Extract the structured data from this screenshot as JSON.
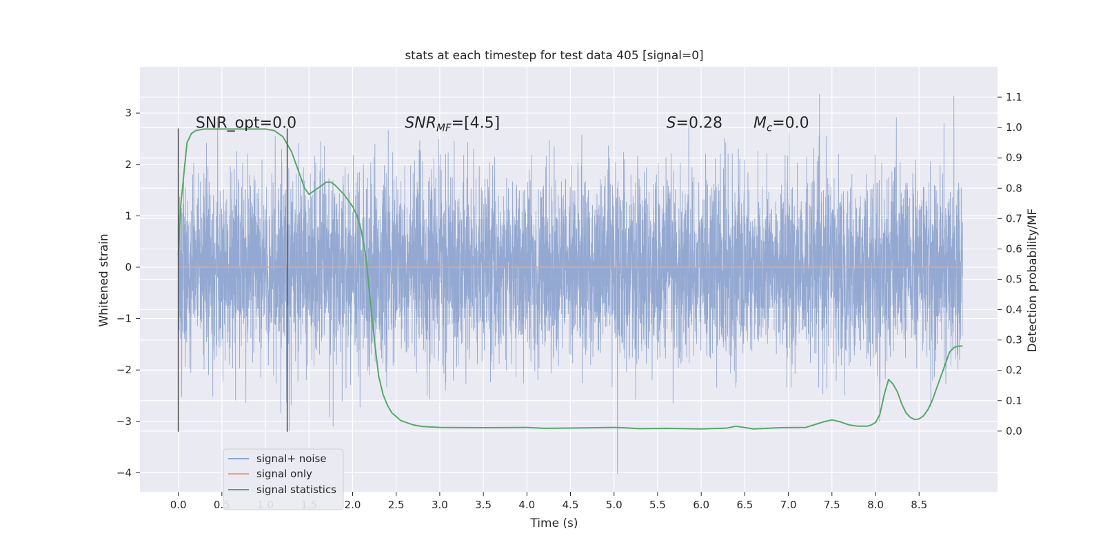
{
  "chart_data": {
    "type": "line",
    "title": "stats at each timestep for test data 405 [signal=0]",
    "xlabel": "Time (s)",
    "ylabel": "Whitened strain",
    "y2label": "Detection probability/MF",
    "xlim": [
      -0.44,
      9.4
    ],
    "ylim": [
      -4.37,
      3.9
    ],
    "y2lim": [
      -0.2,
      1.2
    ],
    "x_ticks": [
      0.0,
      0.5,
      1.0,
      1.5,
      2.0,
      2.5,
      3.0,
      3.5,
      4.0,
      4.5,
      5.0,
      5.5,
      6.0,
      6.5,
      7.0,
      7.5,
      8.0,
      8.5
    ],
    "y_ticks": [
      3,
      2,
      1,
      0,
      -1,
      -2,
      -3,
      -4
    ],
    "y2_ticks": [
      0.0,
      0.1,
      0.2,
      0.3,
      0.4,
      0.5,
      0.6,
      0.7,
      0.8,
      0.9,
      1.0,
      1.1
    ],
    "grid": true,
    "legend_position": "lower-left",
    "annotations": [
      {
        "text": "SNR_opt=0.0",
        "x": 0.2,
        "y": 2.82
      },
      {
        "text": "SNR_MF=[4.5]",
        "x": 2.6,
        "y": 2.82
      },
      {
        "text": "S=0.28",
        "x": 5.6,
        "y": 2.82
      },
      {
        "text": "M_c=0.0",
        "x": 6.6,
        "y": 2.82
      }
    ],
    "vlines": [
      {
        "x": 0.0,
        "ymin": -3.2,
        "ymax": 2.7
      },
      {
        "x": 1.25,
        "ymin": -3.2,
        "ymax": 2.7
      }
    ],
    "series": [
      {
        "name": "signal+ noise",
        "axis": "left",
        "color": "#8fa5cf",
        "duration": 9.0,
        "typical_range": [
          -1.5,
          1.5
        ],
        "extreme_range": [
          -4.02,
          3.52
        ]
      },
      {
        "name": "signal only",
        "axis": "left",
        "color": "#e5a38a",
        "x": [
          0.0,
          9.0
        ],
        "y": [
          0.0,
          0.0
        ]
      },
      {
        "name": "signal statistics",
        "axis": "right",
        "color": "#55a868",
        "x": [
          0.0,
          0.03,
          0.1,
          0.15,
          0.2,
          0.3,
          0.5,
          0.8,
          1.0,
          1.1,
          1.2,
          1.3,
          1.4,
          1.45,
          1.5,
          1.6,
          1.7,
          1.75,
          1.8,
          1.9,
          2.0,
          2.05,
          2.1,
          2.15,
          2.2,
          2.25,
          2.3,
          2.35,
          2.4,
          2.45,
          2.5,
          2.55,
          2.6,
          2.7,
          2.8,
          3.0,
          3.5,
          4.0,
          4.2,
          4.5,
          4.8,
          5.0,
          5.1,
          5.3,
          5.6,
          6.0,
          6.3,
          6.4,
          6.6,
          6.9,
          7.2,
          7.4,
          7.5,
          7.6,
          7.7,
          7.8,
          7.9,
          7.95,
          8.0,
          8.05,
          8.1,
          8.15,
          8.2,
          8.25,
          8.3,
          8.35,
          8.4,
          8.45,
          8.5,
          8.55,
          8.6,
          8.65,
          8.7,
          8.75,
          8.8,
          8.85,
          8.9,
          8.95,
          9.0
        ],
        "y": [
          0.58,
          0.75,
          0.95,
          0.98,
          0.99,
          0.995,
          0.995,
          0.995,
          0.995,
          0.99,
          0.97,
          0.92,
          0.84,
          0.8,
          0.78,
          0.8,
          0.82,
          0.82,
          0.81,
          0.78,
          0.74,
          0.71,
          0.66,
          0.58,
          0.44,
          0.3,
          0.18,
          0.12,
          0.085,
          0.06,
          0.048,
          0.035,
          0.03,
          0.02,
          0.015,
          0.012,
          0.011,
          0.012,
          0.009,
          0.01,
          0.011,
          0.012,
          0.011,
          0.008,
          0.009,
          0.007,
          0.01,
          0.016,
          0.007,
          0.011,
          0.012,
          0.03,
          0.037,
          0.03,
          0.02,
          0.016,
          0.016,
          0.02,
          0.028,
          0.055,
          0.12,
          0.17,
          0.155,
          0.13,
          0.09,
          0.06,
          0.045,
          0.038,
          0.04,
          0.05,
          0.07,
          0.1,
          0.14,
          0.18,
          0.22,
          0.26,
          0.275,
          0.28,
          0.28
        ]
      }
    ]
  }
}
